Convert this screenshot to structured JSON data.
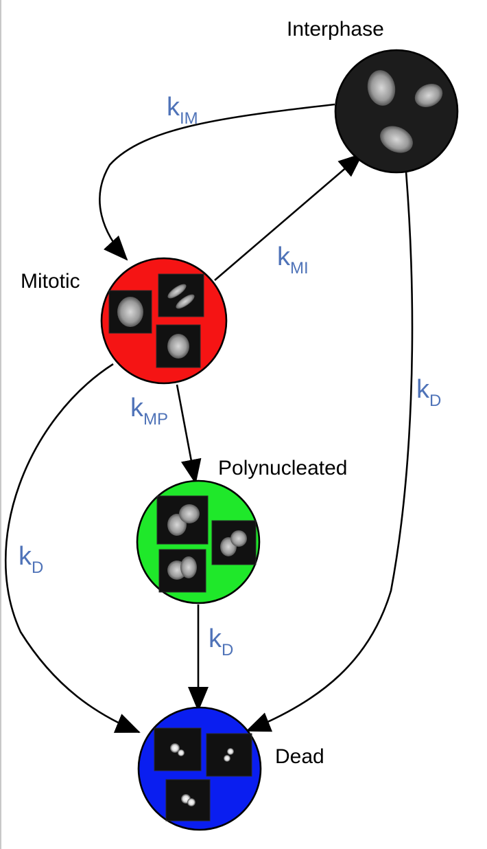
{
  "colors": {
    "interphase": "#1c1c1c",
    "mitotic": "#f51414",
    "polynucleated": "#1fe82a",
    "dead": "#0a1ef0",
    "rate_label": "#4f73b8"
  },
  "nodes": {
    "interphase": {
      "label": "Interphase"
    },
    "mitotic": {
      "label": "Mitotic"
    },
    "polynucleated": {
      "label": "Polynucleated"
    },
    "dead": {
      "label": "Dead"
    }
  },
  "rates": {
    "k_im": {
      "main": "k",
      "sub": "IM"
    },
    "k_mi": {
      "main": "k",
      "sub": "MI"
    },
    "k_mp": {
      "main": "k",
      "sub": "MP"
    },
    "k_d_interphase": {
      "main": "k",
      "sub": "D"
    },
    "k_d_mitotic": {
      "main": "k",
      "sub": "D"
    },
    "k_d_polynucleated": {
      "main": "k",
      "sub": "D"
    }
  }
}
